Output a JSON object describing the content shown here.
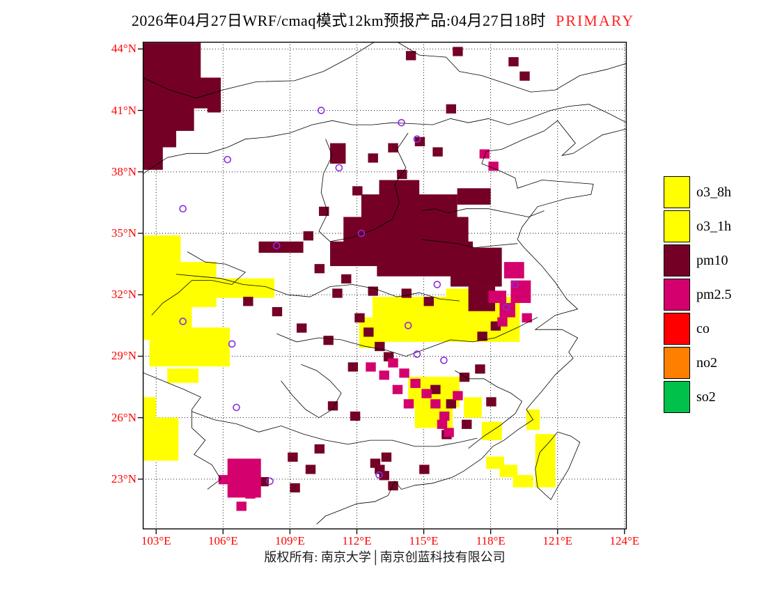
{
  "title": {
    "main": "2026年04月27日WRF/cmaq模式12km预报产品:04月27日18时",
    "primary": "PRIMARY"
  },
  "footer": {
    "copyright": "版权所有: 南京大学│南京创蓝科技有限公司"
  },
  "colors": {
    "axis_label": "#ff0000",
    "title_primary": "#ff2222",
    "grid": "#000000",
    "boundary": "#000000",
    "frame": "#000000",
    "marker": "#8a2be2",
    "o3": "#ffff00",
    "pm10": "#740125",
    "pm25": "#d4006d",
    "co": "#ff0000",
    "no2": "#ff8000",
    "so2": "#00c24b"
  },
  "legend": {
    "items": [
      {
        "label": "o3_8h",
        "color": "#ffff00"
      },
      {
        "label": "o3_1h",
        "color": "#ffff00"
      },
      {
        "label": "pm10",
        "color": "#740125"
      },
      {
        "label": "pm2.5",
        "color": "#d4006d"
      },
      {
        "label": "co",
        "color": "#ff0000"
      },
      {
        "label": "no2",
        "color": "#ff8000"
      },
      {
        "label": "so2",
        "color": "#00c24b"
      }
    ]
  },
  "map": {
    "extent": {
      "lon_min": 102.4,
      "lon_max": 124.1,
      "lat_min": 20.55,
      "lat_max": 44.35
    },
    "x_ticks": [
      {
        "lon": 103,
        "label": "103°E"
      },
      {
        "lon": 106,
        "label": "106°E"
      },
      {
        "lon": 109,
        "label": "109°E"
      },
      {
        "lon": 112,
        "label": "112°E"
      },
      {
        "lon": 115,
        "label": "115°E"
      },
      {
        "lon": 118,
        "label": "118°E"
      },
      {
        "lon": 121,
        "label": "121°E"
      },
      {
        "lon": 124,
        "label": "124°E"
      }
    ],
    "y_ticks": [
      {
        "lat": 44,
        "label": "44°N"
      },
      {
        "lat": 41,
        "label": "41°N"
      },
      {
        "lat": 38,
        "label": "38°N"
      },
      {
        "lat": 35,
        "label": "35°N"
      },
      {
        "lat": 32,
        "label": "32°N"
      },
      {
        "lat": 29,
        "label": "29°N"
      },
      {
        "lat": 26,
        "label": "26°N"
      },
      {
        "lat": 23,
        "label": "23°N"
      }
    ],
    "markers": [
      [
        110.4,
        41.0
      ],
      [
        114.0,
        40.4
      ],
      [
        114.7,
        39.6
      ],
      [
        106.2,
        38.6
      ],
      [
        111.2,
        38.2
      ],
      [
        104.2,
        36.2
      ],
      [
        108.4,
        34.4
      ],
      [
        112.2,
        35.0
      ],
      [
        115.6,
        32.5
      ],
      [
        119.1,
        32.5
      ],
      [
        118.7,
        31.4
      ],
      [
        104.2,
        30.7
      ],
      [
        106.4,
        29.6
      ],
      [
        114.3,
        30.5
      ],
      [
        114.7,
        29.1
      ],
      [
        106.6,
        26.5
      ],
      [
        108.1,
        22.9
      ],
      [
        113.0,
        23.2
      ],
      [
        115.9,
        28.8
      ]
    ],
    "regions": {
      "o3": {
        "color": "#ffff00",
        "rects": [
          [
            102.4,
            34.9,
            1.7,
            1.8
          ],
          [
            102.4,
            33.6,
            3.3,
            2.2
          ],
          [
            105.3,
            32.8,
            3.0,
            0.95
          ],
          [
            102.4,
            31.5,
            2.2,
            1.7
          ],
          [
            102.7,
            30.4,
            3.6,
            1.9
          ],
          [
            103.5,
            28.4,
            1.4,
            0.7
          ],
          [
            102.4,
            27.0,
            0.6,
            1.0
          ],
          [
            102.4,
            26.0,
            1.6,
            2.1
          ],
          [
            112.7,
            31.9,
            6.6,
            2.2
          ],
          [
            116.0,
            32.3,
            1.9,
            0.7
          ],
          [
            112.1,
            30.9,
            1.0,
            1.5
          ],
          [
            114.3,
            28.0,
            2.3,
            1.5
          ],
          [
            114.6,
            26.5,
            1.7,
            1.0
          ],
          [
            116.8,
            27.0,
            0.8,
            1.0
          ],
          [
            117.6,
            25.8,
            0.9,
            0.9
          ],
          [
            117.8,
            24.1,
            0.8,
            0.6
          ],
          [
            118.4,
            23.7,
            0.8,
            0.6
          ],
          [
            119.0,
            23.2,
            0.9,
            0.6
          ],
          [
            119.6,
            26.4,
            0.6,
            1.0
          ],
          [
            120.0,
            25.2,
            0.9,
            2.6
          ]
        ],
        "cells": []
      },
      "pm10": {
        "color": "#740125",
        "rects": [
          [
            102.4,
            44.3,
            2.6,
            2.0
          ],
          [
            102.4,
            42.6,
            3.5,
            1.5
          ],
          [
            102.4,
            41.3,
            2.3,
            1.3
          ],
          [
            102.4,
            40.2,
            1.5,
            1.0
          ],
          [
            102.4,
            39.3,
            0.9,
            1.2
          ],
          [
            105.3,
            41.5,
            0.6,
            0.6
          ],
          [
            113.0,
            37.6,
            1.8,
            1.1
          ],
          [
            112.2,
            36.9,
            4.3,
            1.4
          ],
          [
            111.4,
            35.8,
            5.6,
            1.5
          ],
          [
            110.8,
            34.6,
            6.4,
            1.2
          ],
          [
            112.9,
            33.6,
            4.0,
            0.7
          ],
          [
            116.2,
            34.3,
            2.3,
            1.9
          ],
          [
            117.0,
            32.4,
            1.2,
            1.2
          ],
          [
            107.6,
            34.6,
            2.0,
            0.55
          ],
          [
            116.5,
            37.2,
            1.5,
            0.8
          ],
          [
            110.8,
            39.4,
            0.7,
            1.0
          ]
        ],
        "cells": [
          [
            114.2,
            43.9
          ],
          [
            116.3,
            44.1
          ],
          [
            118.8,
            43.6
          ],
          [
            119.3,
            42.9
          ],
          [
            116.0,
            41.3
          ],
          [
            113.4,
            39.4
          ],
          [
            114.6,
            39.7
          ],
          [
            115.4,
            39.2
          ],
          [
            112.5,
            38.9
          ],
          [
            113.8,
            38.1
          ],
          [
            111.8,
            37.3
          ],
          [
            110.3,
            36.3
          ],
          [
            109.6,
            35.1
          ],
          [
            110.1,
            33.5
          ],
          [
            111.3,
            33.0
          ],
          [
            112.5,
            32.4
          ],
          [
            111.9,
            31.1
          ],
          [
            112.3,
            30.4
          ],
          [
            112.8,
            29.7
          ],
          [
            113.2,
            29.2
          ],
          [
            111.6,
            28.7
          ],
          [
            110.7,
            26.8
          ],
          [
            111.7,
            26.3
          ],
          [
            110.1,
            24.7
          ],
          [
            108.9,
            24.3
          ],
          [
            109.7,
            23.7
          ],
          [
            112.6,
            24.0
          ],
          [
            113.0,
            23.4
          ],
          [
            113.4,
            22.9
          ],
          [
            115.3,
            27.6
          ],
          [
            116.0,
            26.9
          ],
          [
            116.6,
            28.2
          ],
          [
            117.3,
            28.6
          ],
          [
            115.8,
            25.4
          ],
          [
            109.0,
            22.8
          ],
          [
            107.6,
            23.1
          ],
          [
            114.8,
            23.7
          ],
          [
            110.5,
            30.0
          ],
          [
            109.3,
            30.6
          ],
          [
            108.2,
            31.4
          ],
          [
            106.9,
            31.9
          ],
          [
            114.0,
            32.3
          ],
          [
            115.0,
            31.9
          ],
          [
            110.9,
            32.3
          ],
          [
            118.0,
            30.7
          ],
          [
            117.4,
            30.2
          ],
          [
            116.7,
            25.9
          ],
          [
            117.8,
            27.0
          ],
          [
            113.1,
            24.3
          ],
          [
            112.8,
            23.7
          ]
        ]
      },
      "pm25": {
        "color": "#d4006d",
        "rects": [
          [
            118.6,
            33.6,
            0.9,
            0.8
          ],
          [
            118.9,
            32.7,
            0.9,
            1.1
          ],
          [
            117.9,
            32.2,
            0.8,
            0.6
          ],
          [
            118.4,
            31.6,
            0.7,
            0.7
          ],
          [
            106.2,
            24.0,
            1.5,
            1.9
          ]
        ],
        "cells": [
          [
            117.5,
            39.1
          ],
          [
            117.9,
            38.5
          ],
          [
            113.4,
            28.9
          ],
          [
            113.9,
            28.4
          ],
          [
            114.4,
            27.9
          ],
          [
            114.9,
            27.4
          ],
          [
            115.3,
            26.9
          ],
          [
            113.6,
            27.6
          ],
          [
            114.1,
            26.9
          ],
          [
            115.7,
            26.3
          ],
          [
            113.0,
            28.3
          ],
          [
            115.6,
            25.9
          ],
          [
            115.9,
            25.5
          ],
          [
            116.3,
            27.3
          ],
          [
            105.8,
            23.2
          ],
          [
            107.0,
            22.5
          ],
          [
            106.6,
            21.9
          ],
          [
            119.4,
            31.1
          ],
          [
            118.3,
            30.9
          ],
          [
            112.4,
            28.7
          ]
        ]
      }
    }
  }
}
